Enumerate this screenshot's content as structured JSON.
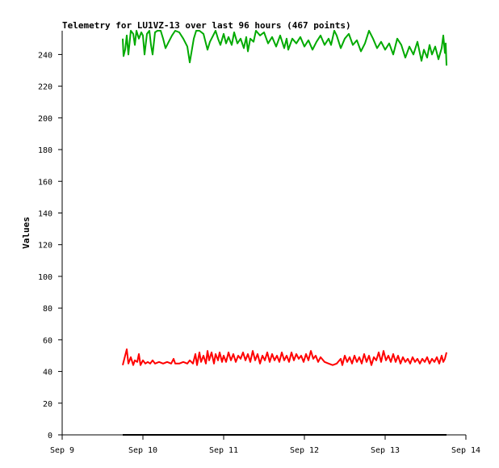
{
  "chart_data": {
    "type": "line",
    "title": "Telemetry for LU1VZ-13 over last 96 hours (467 points)",
    "xlabel": "",
    "ylabel": "Values",
    "x_ticks": [
      "Sep 9",
      "Sep 10",
      "Sep 11",
      "Sep 12",
      "Sep 13",
      "Sep 14"
    ],
    "y_ticks": [
      "0",
      "20",
      "40",
      "60",
      "80",
      "100",
      "120",
      "140",
      "160",
      "180",
      "200",
      "220",
      "240"
    ],
    "xlim": [
      "Sep 9 00:00",
      "Sep 14 00:00"
    ],
    "ylim": [
      0,
      255
    ],
    "grid": false,
    "x_unit": "days since Sep 9 00:00",
    "series": [
      {
        "color": "#00aa00",
        "points": [
          [
            0.75,
            250
          ],
          [
            0.76,
            239
          ],
          [
            0.78,
            243
          ],
          [
            0.8,
            252
          ],
          [
            0.82,
            240
          ],
          [
            0.85,
            255
          ],
          [
            0.88,
            253
          ],
          [
            0.9,
            246
          ],
          [
            0.92,
            255
          ],
          [
            0.95,
            250
          ],
          [
            0.98,
            254
          ],
          [
            1.0,
            252
          ],
          [
            1.02,
            240
          ],
          [
            1.05,
            253
          ],
          [
            1.08,
            255
          ],
          [
            1.1,
            246
          ],
          [
            1.12,
            240
          ],
          [
            1.15,
            254
          ],
          [
            1.18,
            255
          ],
          [
            1.22,
            255
          ],
          [
            1.25,
            250
          ],
          [
            1.28,
            244
          ],
          [
            1.32,
            248
          ],
          [
            1.36,
            252
          ],
          [
            1.4,
            255
          ],
          [
            1.45,
            254
          ],
          [
            1.5,
            250
          ],
          [
            1.55,
            245
          ],
          [
            1.58,
            235
          ],
          [
            1.6,
            241
          ],
          [
            1.63,
            250
          ],
          [
            1.66,
            255
          ],
          [
            1.7,
            255
          ],
          [
            1.75,
            253
          ],
          [
            1.8,
            243
          ],
          [
            1.83,
            248
          ],
          [
            1.87,
            252
          ],
          [
            1.9,
            255
          ],
          [
            1.93,
            250
          ],
          [
            1.96,
            246
          ],
          [
            2.0,
            253
          ],
          [
            2.03,
            247
          ],
          [
            2.06,
            251
          ],
          [
            2.1,
            246
          ],
          [
            2.13,
            254
          ],
          [
            2.17,
            247
          ],
          [
            2.21,
            250
          ],
          [
            2.25,
            244
          ],
          [
            2.28,
            251
          ],
          [
            2.3,
            242
          ],
          [
            2.33,
            250
          ],
          [
            2.37,
            248
          ],
          [
            2.4,
            255
          ],
          [
            2.45,
            252
          ],
          [
            2.5,
            254
          ],
          [
            2.55,
            247
          ],
          [
            2.6,
            251
          ],
          [
            2.65,
            245
          ],
          [
            2.7,
            252
          ],
          [
            2.75,
            244
          ],
          [
            2.78,
            250
          ],
          [
            2.8,
            243
          ],
          [
            2.85,
            250
          ],
          [
            2.9,
            247
          ],
          [
            2.95,
            251
          ],
          [
            3.0,
            245
          ],
          [
            3.05,
            249
          ],
          [
            3.1,
            243
          ],
          [
            3.15,
            248
          ],
          [
            3.2,
            252
          ],
          [
            3.25,
            246
          ],
          [
            3.3,
            250
          ],
          [
            3.33,
            246
          ],
          [
            3.37,
            255
          ],
          [
            3.4,
            252
          ],
          [
            3.45,
            244
          ],
          [
            3.5,
            250
          ],
          [
            3.55,
            253
          ],
          [
            3.6,
            246
          ],
          [
            3.65,
            249
          ],
          [
            3.7,
            242
          ],
          [
            3.75,
            247
          ],
          [
            3.8,
            255
          ],
          [
            3.85,
            250
          ],
          [
            3.9,
            244
          ],
          [
            3.95,
            248
          ],
          [
            4.0,
            243
          ],
          [
            4.05,
            247
          ],
          [
            4.1,
            240
          ],
          [
            4.15,
            250
          ],
          [
            4.2,
            246
          ],
          [
            4.25,
            238
          ],
          [
            4.3,
            245
          ],
          [
            4.35,
            240
          ],
          [
            4.4,
            248
          ],
          [
            4.45,
            236
          ],
          [
            4.48,
            243
          ],
          [
            4.52,
            238
          ],
          [
            4.55,
            246
          ],
          [
            4.58,
            240
          ],
          [
            4.62,
            245
          ],
          [
            4.66,
            237
          ],
          [
            4.7,
            244
          ],
          [
            4.72,
            252
          ],
          [
            4.74,
            241
          ],
          [
            4.75,
            247
          ],
          [
            4.76,
            233
          ]
        ]
      },
      {
        "color": "#ff0000",
        "points": [
          [
            0.75,
            44
          ],
          [
            0.78,
            50
          ],
          [
            0.8,
            54
          ],
          [
            0.82,
            45
          ],
          [
            0.85,
            49
          ],
          [
            0.88,
            44
          ],
          [
            0.9,
            47
          ],
          [
            0.93,
            46
          ],
          [
            0.95,
            51
          ],
          [
            0.97,
            44
          ],
          [
            1.0,
            47
          ],
          [
            1.03,
            45
          ],
          [
            1.06,
            46
          ],
          [
            1.09,
            45
          ],
          [
            1.12,
            47
          ],
          [
            1.15,
            45
          ],
          [
            1.2,
            46
          ],
          [
            1.25,
            45
          ],
          [
            1.3,
            46
          ],
          [
            1.35,
            45
          ],
          [
            1.38,
            48
          ],
          [
            1.4,
            45
          ],
          [
            1.45,
            45
          ],
          [
            1.5,
            46
          ],
          [
            1.55,
            45
          ],
          [
            1.58,
            47
          ],
          [
            1.6,
            46
          ],
          [
            1.62,
            45
          ],
          [
            1.65,
            51
          ],
          [
            1.67,
            44
          ],
          [
            1.7,
            52
          ],
          [
            1.72,
            46
          ],
          [
            1.75,
            50
          ],
          [
            1.78,
            45
          ],
          [
            1.8,
            53
          ],
          [
            1.82,
            47
          ],
          [
            1.85,
            52
          ],
          [
            1.88,
            45
          ],
          [
            1.9,
            51
          ],
          [
            1.93,
            47
          ],
          [
            1.95,
            52
          ],
          [
            1.98,
            46
          ],
          [
            2.0,
            50
          ],
          [
            2.03,
            46
          ],
          [
            2.06,
            52
          ],
          [
            2.09,
            47
          ],
          [
            2.12,
            51
          ],
          [
            2.15,
            46
          ],
          [
            2.18,
            50
          ],
          [
            2.21,
            48
          ],
          [
            2.24,
            52
          ],
          [
            2.27,
            47
          ],
          [
            2.3,
            51
          ],
          [
            2.33,
            46
          ],
          [
            2.36,
            53
          ],
          [
            2.39,
            47
          ],
          [
            2.42,
            51
          ],
          [
            2.45,
            45
          ],
          [
            2.48,
            50
          ],
          [
            2.51,
            47
          ],
          [
            2.54,
            52
          ],
          [
            2.57,
            46
          ],
          [
            2.6,
            51
          ],
          [
            2.63,
            47
          ],
          [
            2.66,
            50
          ],
          [
            2.69,
            46
          ],
          [
            2.72,
            52
          ],
          [
            2.75,
            47
          ],
          [
            2.78,
            50
          ],
          [
            2.81,
            46
          ],
          [
            2.84,
            52
          ],
          [
            2.87,
            47
          ],
          [
            2.9,
            51
          ],
          [
            2.93,
            48
          ],
          [
            2.96,
            50
          ],
          [
            2.99,
            46
          ],
          [
            3.02,
            51
          ],
          [
            3.05,
            47
          ],
          [
            3.08,
            53
          ],
          [
            3.11,
            48
          ],
          [
            3.14,
            50
          ],
          [
            3.17,
            46
          ],
          [
            3.2,
            49
          ],
          [
            3.25,
            46
          ],
          [
            3.3,
            45
          ],
          [
            3.35,
            44
          ],
          [
            3.4,
            45
          ],
          [
            3.45,
            48
          ],
          [
            3.47,
            44
          ],
          [
            3.5,
            50
          ],
          [
            3.53,
            46
          ],
          [
            3.56,
            49
          ],
          [
            3.59,
            45
          ],
          [
            3.62,
            50
          ],
          [
            3.65,
            46
          ],
          [
            3.68,
            49
          ],
          [
            3.71,
            45
          ],
          [
            3.74,
            51
          ],
          [
            3.77,
            46
          ],
          [
            3.8,
            50
          ],
          [
            3.83,
            44
          ],
          [
            3.86,
            49
          ],
          [
            3.89,
            47
          ],
          [
            3.92,
            52
          ],
          [
            3.95,
            46
          ],
          [
            3.98,
            53
          ],
          [
            4.01,
            47
          ],
          [
            4.04,
            50
          ],
          [
            4.07,
            46
          ],
          [
            4.1,
            51
          ],
          [
            4.13,
            46
          ],
          [
            4.16,
            50
          ],
          [
            4.19,
            45
          ],
          [
            4.22,
            49
          ],
          [
            4.25,
            46
          ],
          [
            4.28,
            48
          ],
          [
            4.31,
            45
          ],
          [
            4.34,
            49
          ],
          [
            4.37,
            46
          ],
          [
            4.4,
            48
          ],
          [
            4.43,
            45
          ],
          [
            4.46,
            48
          ],
          [
            4.49,
            46
          ],
          [
            4.52,
            49
          ],
          [
            4.55,
            45
          ],
          [
            4.58,
            48
          ],
          [
            4.61,
            46
          ],
          [
            4.64,
            49
          ],
          [
            4.67,
            45
          ],
          [
            4.7,
            50
          ],
          [
            4.72,
            46
          ],
          [
            4.74,
            48
          ],
          [
            4.76,
            52
          ]
        ]
      },
      {
        "color": "#000000",
        "points": [
          [
            0.75,
            0
          ],
          [
            4.76,
            0
          ]
        ]
      }
    ]
  }
}
